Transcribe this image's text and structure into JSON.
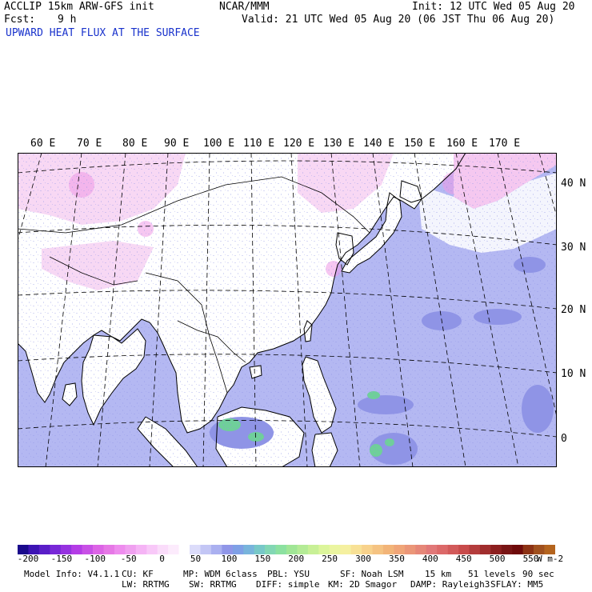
{
  "header": {
    "model_line": "ACCLIP 15km ARW-GFS init",
    "fcst_label": "Fcst:",
    "fcst_value": "9 h",
    "center_label": "NCAR/MMM",
    "init_line": "Init: 12 UTC Wed 05 Aug 20",
    "valid_line": "Valid: 21 UTC Wed 05 Aug 20 (06 JST Thu 06 Aug 20)",
    "field_title": "UPWARD HEAT FLUX AT THE SURFACE"
  },
  "map": {
    "lon_labels": [
      "60 E",
      "70 E",
      "80 E",
      "90 E",
      "100 E",
      "110 E",
      "120 E",
      "130 E",
      "140 E",
      "150 E",
      "160 E",
      "170 E"
    ],
    "lat_labels": [
      "40 N",
      "30 N",
      "20 N",
      "10 N",
      "0"
    ],
    "colors": {
      "ocean": "#b4b8f2",
      "land": "#ffffff",
      "land_pink": "#f5c8f0",
      "pink_strong": "#ee99e6",
      "ocean_dark": "#8f94e6",
      "green": "#6fcf9a",
      "coast": "#000000",
      "grid": "#000000"
    }
  },
  "colorbar": {
    "tick_labels": [
      "-200",
      "-150",
      "-100",
      "-50",
      "0",
      "50",
      "100",
      "150",
      "200",
      "250",
      "300",
      "350",
      "400",
      "450",
      "500",
      "550"
    ],
    "units": "W m-2",
    "colors": [
      "#1a0a8c",
      "#3d14b4",
      "#5a1ec8",
      "#7828d7",
      "#9632e0",
      "#b43ce6",
      "#c850e6",
      "#dc64e6",
      "#e678e6",
      "#ee8cee",
      "#f0a0f0",
      "#f5b4f5",
      "#f8c8f8",
      "#fadcfa",
      "#fcebfc",
      "#ffffff",
      "#dcdcfa",
      "#c3c6f5",
      "#aab0f0",
      "#9096e8",
      "#7fa0e6",
      "#78b4dc",
      "#78c8c8",
      "#82d7b4",
      "#8ce1a0",
      "#a0e696",
      "#b4eb96",
      "#c8f096",
      "#dcf59b",
      "#ebf5a0",
      "#f5f0a0",
      "#f8e196",
      "#f8d28c",
      "#f5c382",
      "#f2b478",
      "#f0a578",
      "#eb9678",
      "#e68778",
      "#e17878",
      "#dc6969",
      "#d25a5a",
      "#c84b4b",
      "#b43c3c",
      "#a02d2d",
      "#8c1e1e",
      "#781414",
      "#6e0a0a",
      "#8c3214",
      "#a0501e",
      "#b4641e"
    ]
  },
  "footer": {
    "model_info": "Model Info: V4.1.1",
    "cu": "CU: KF",
    "mp": "MP: WDM 6class",
    "pbl": "PBL: YSU",
    "sf": "SF: Noah LSM",
    "res": "15 km",
    "levels": "51 levels",
    "dt": "90 sec",
    "lw": "LW: RRTMG",
    "sw": "SW: RRTMG",
    "diff": "DIFF: simple",
    "km": "KM: 2D Smagor",
    "damp": "DAMP: Rayleigh3",
    "sflay": "SFLAY: MM5"
  }
}
